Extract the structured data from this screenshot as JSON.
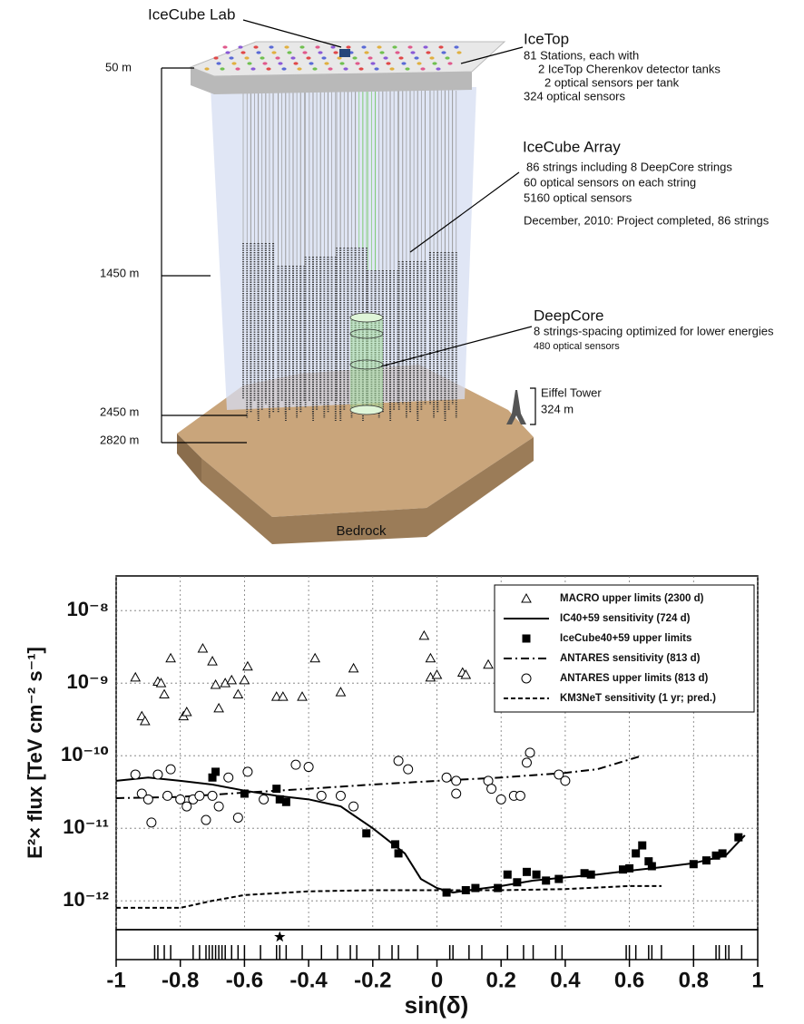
{
  "diagram": {
    "lab": "IceCube Lab",
    "icetop": {
      "title": "IceTop",
      "lines": [
        "81 Stations, each with",
        "2 IceTop Cherenkov detector tanks",
        "2 optical sensors per tank",
        "324 optical sensors"
      ]
    },
    "array": {
      "title": "IceCube Array",
      "lines": [
        "86 strings including 8 DeepCore strings",
        "60 optical sensors on each string",
        "5160 optical sensors"
      ],
      "note": "December, 2010: Project completed, 86 strings"
    },
    "deepcore": {
      "title": "DeepCore",
      "lines": [
        "8 strings-spacing optimized for lower energies",
        "480 optical sensors"
      ]
    },
    "eiffel": {
      "title": "Eiffel Tower",
      "height": "324 m"
    },
    "depths": [
      "50 m",
      "1450 m",
      "2450 m",
      "2820 m"
    ],
    "bedrock": "Bedrock"
  },
  "chart_data": {
    "type": "scatter",
    "y_label": "E²× flux [TeV cm⁻² s⁻¹]",
    "x_label": "sin(δ)",
    "xlim": [
      -1,
      1
    ],
    "xticks": [
      -1,
      -0.8,
      -0.6,
      -0.4,
      -0.2,
      0,
      0.2,
      0.4,
      0.6,
      0.8,
      1
    ],
    "ylim": [
      4e-13,
      3e-08
    ],
    "log_y": true,
    "yticks": [
      {
        "value": 1e-08,
        "label": "10⁻⁸"
      },
      {
        "value": 1e-09,
        "label": "10⁻⁹"
      },
      {
        "value": 1e-10,
        "label": "10⁻¹⁰"
      },
      {
        "value": 1e-11,
        "label": "10⁻¹¹"
      },
      {
        "value": 1e-12,
        "label": "10⁻¹²"
      }
    ],
    "grid": true,
    "legend": "upper right",
    "series": [
      {
        "name": "MACRO upper limits (2300 d)",
        "color": "#000000",
        "marker": "triangle-open",
        "x": [
          -0.94,
          -0.92,
          -0.91,
          -0.87,
          -0.86,
          -0.85,
          -0.83,
          -0.79,
          -0.78,
          -0.73,
          -0.7,
          -0.69,
          -0.68,
          -0.66,
          -0.64,
          -0.62,
          -0.6,
          -0.59,
          -0.5,
          -0.48,
          -0.42,
          -0.38,
          -0.3,
          -0.26,
          -0.04,
          -0.02,
          -0.02,
          0.0,
          0.08,
          0.09,
          0.16
        ],
        "values": [
          1.2e-09,
          3.5e-10,
          3e-10,
          1.05e-09,
          1e-09,
          7e-10,
          2.2e-09,
          3.5e-10,
          4e-10,
          3e-09,
          2e-09,
          9.5e-10,
          4.5e-10,
          1e-09,
          1.1e-09,
          7e-10,
          1.1e-09,
          1.7e-09,
          6.5e-10,
          6.5e-10,
          6.5e-10,
          2.2e-09,
          7.5e-10,
          1.6e-09,
          4.5e-09,
          2.2e-09,
          1.2e-09,
          1.3e-09,
          1.4e-09,
          1.3e-09,
          1.8e-09
        ]
      },
      {
        "name": "IC40+59 sensitivity (724 d)",
        "color": "#000000",
        "line": "solid",
        "x": [
          -1,
          -0.9,
          -0.8,
          -0.7,
          -0.6,
          -0.5,
          -0.4,
          -0.3,
          -0.2,
          -0.1,
          -0.05,
          0,
          0.05,
          0.1,
          0.2,
          0.3,
          0.4,
          0.5,
          0.6,
          0.7,
          0.8,
          0.9,
          0.96
        ],
        "values": [
          4.5e-11,
          5e-11,
          4.5e-11,
          4e-11,
          3.3e-11,
          2.8e-11,
          2.5e-11,
          2e-11,
          1e-11,
          4.5e-12,
          2e-12,
          1.5e-12,
          1.3e-12,
          1.4e-12,
          1.6e-12,
          1.9e-12,
          2.1e-12,
          2.3e-12,
          2.6e-12,
          2.9e-12,
          3.3e-12,
          4.2e-12,
          8e-12
        ]
      },
      {
        "name": "IceCube40+59 upper limits",
        "color": "#000000",
        "marker": "square-filled",
        "x": [
          -0.7,
          -0.69,
          -0.6,
          -0.5,
          -0.49,
          -0.47,
          -0.22,
          -0.13,
          -0.12,
          0.03,
          0.09,
          0.12,
          0.19,
          0.22,
          0.25,
          0.28,
          0.31,
          0.34,
          0.38,
          0.46,
          0.48,
          0.58,
          0.6,
          0.62,
          0.64,
          0.66,
          0.67,
          0.8,
          0.84,
          0.87,
          0.89,
          0.94
        ],
        "values": [
          5e-11,
          6e-11,
          3e-11,
          3.5e-11,
          2.5e-11,
          2.3e-11,
          8.5e-12,
          6e-12,
          4.5e-12,
          1.3e-12,
          1.4e-12,
          1.5e-12,
          1.5e-12,
          2.3e-12,
          1.8e-12,
          2.5e-12,
          2.3e-12,
          1.9e-12,
          2e-12,
          2.4e-12,
          2.3e-12,
          2.7e-12,
          2.8e-12,
          4.5e-12,
          5.8e-12,
          3.5e-12,
          3e-12,
          3.2e-12,
          3.6e-12,
          4.2e-12,
          4.5e-12,
          7.5e-12
        ]
      },
      {
        "name": "ANTARES sensitivity (813 d)",
        "color": "#000000",
        "line": "dash-dot",
        "x": [
          -1,
          -0.8,
          -0.6,
          -0.4,
          -0.2,
          0,
          0.2,
          0.4,
          0.5,
          0.64
        ],
        "values": [
          2.6e-11,
          2.7e-11,
          3.1e-11,
          3.5e-11,
          4e-11,
          4.5e-11,
          5e-11,
          5.8e-11,
          6.5e-11,
          1e-10
        ]
      },
      {
        "name": "ANTARES upper limits (813 d)",
        "color": "#000000",
        "marker": "circle-open",
        "x": [
          -0.94,
          -0.92,
          -0.9,
          -0.89,
          -0.87,
          -0.84,
          -0.83,
          -0.8,
          -0.78,
          -0.76,
          -0.74,
          -0.72,
          -0.7,
          -0.68,
          -0.65,
          -0.62,
          -0.59,
          -0.54,
          -0.44,
          -0.4,
          -0.36,
          -0.3,
          -0.26,
          -0.12,
          -0.09,
          0.03,
          0.06,
          0.06,
          0.16,
          0.17,
          0.2,
          0.24,
          0.26,
          0.28,
          0.29,
          0.38,
          0.4
        ],
        "values": [
          5.5e-11,
          3e-11,
          2.5e-11,
          1.2e-11,
          5.5e-11,
          2.8e-11,
          6.5e-11,
          2.5e-11,
          2e-11,
          2.5e-11,
          2.8e-11,
          1.3e-11,
          2.8e-11,
          2e-11,
          5e-11,
          1.4e-11,
          6e-11,
          2.5e-11,
          7.5e-11,
          7e-11,
          2.8e-11,
          2.8e-11,
          2e-11,
          8.5e-11,
          6.5e-11,
          5e-11,
          4.5e-11,
          3e-11,
          4.5e-11,
          3.5e-11,
          2.5e-11,
          2.8e-11,
          2.8e-11,
          8e-11,
          1.1e-10,
          5.5e-11,
          4.5e-11
        ]
      },
      {
        "name": "KM3NeT sensitivity (1 yr; pred.)",
        "color": "#000000",
        "line": "dashed",
        "x": [
          -1,
          -0.8,
          -0.7,
          -0.6,
          -0.4,
          -0.2,
          0,
          0.2,
          0.4,
          0.6,
          0.7
        ],
        "values": [
          8e-13,
          8e-13,
          1e-12,
          1.2e-12,
          1.35e-12,
          1.4e-12,
          1.4e-12,
          1.4e-12,
          1.45e-12,
          1.6e-12,
          1.6e-12
        ]
      }
    ],
    "events": [
      -0.88,
      -0.87,
      -0.85,
      -0.83,
      -0.76,
      -0.74,
      -0.72,
      -0.71,
      -0.7,
      -0.69,
      -0.68,
      -0.67,
      -0.66,
      -0.64,
      -0.62,
      -0.6,
      -0.55,
      -0.5,
      -0.49,
      -0.47,
      -0.42,
      -0.36,
      -0.31,
      -0.27,
      -0.25,
      -0.18,
      -0.14,
      -0.12,
      -0.06,
      0.04,
      0.05,
      0.1,
      0.14,
      0.22,
      0.27,
      0.3,
      0.37,
      0.39,
      0.59,
      0.6,
      0.62,
      0.66,
      0.67,
      0.7,
      0.8,
      0.87,
      0.88,
      0.9,
      0.91,
      0.95
    ],
    "star": -0.49
  }
}
